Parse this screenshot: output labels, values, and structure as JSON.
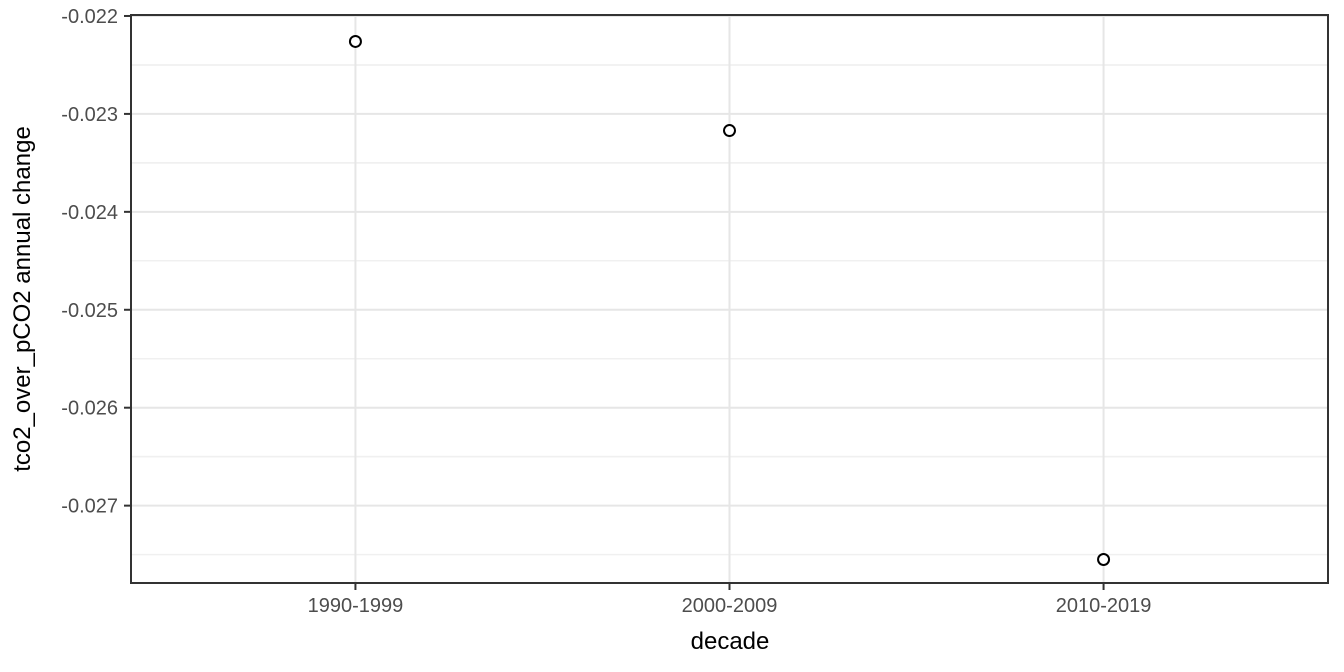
{
  "chart_data": {
    "type": "scatter",
    "title": "",
    "xlabel": "decade",
    "ylabel": "tco2_over_pCO2 annual change",
    "categories": [
      "1990-1999",
      "2000-2009",
      "2010-2019"
    ],
    "values": [
      -0.02226,
      -0.02317,
      -0.02755
    ],
    "yticks": [
      -0.022,
      -0.023,
      -0.024,
      -0.025,
      -0.026,
      -0.027
    ],
    "ytick_labels": [
      "-0.022",
      "-0.023",
      "-0.024",
      "-0.025",
      "-0.026",
      "-0.027"
    ],
    "ylim": [
      -0.02779,
      -0.02199
    ],
    "minor_grid_step": 0.0005,
    "legend": "none",
    "grid": "major+minor",
    "point_style": "open-circle",
    "colors": {
      "background": "#ffffff",
      "panel_background": "#ffffff",
      "panel_border": "#333333",
      "grid_major": "#e6e6e6",
      "grid_minor": "#f0f0f0",
      "tick_mark": "#333333",
      "tick_label": "#4d4d4d",
      "axis_title": "#000000",
      "point_stroke": "#000000",
      "point_fill": "#ffffff"
    }
  }
}
